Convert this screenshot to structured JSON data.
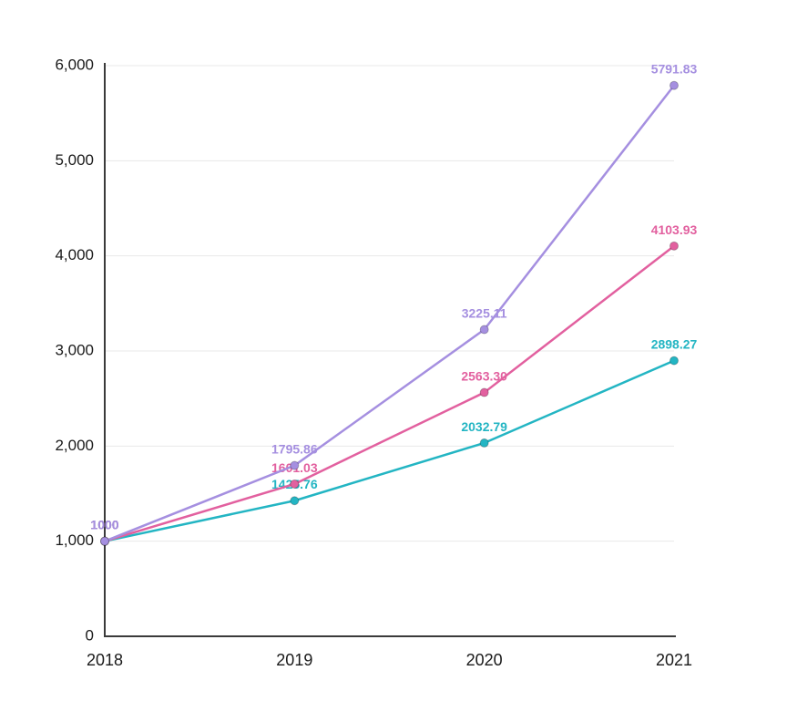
{
  "chart_data": {
    "type": "line",
    "title": "",
    "xlabel": "",
    "ylabel": "",
    "x": [
      "2018",
      "2019",
      "2020",
      "2021"
    ],
    "series": [
      {
        "name": "teal",
        "color": "#23b5c3",
        "values": [
          1000,
          1425.76,
          2032.79,
          2898.27
        ],
        "labels": [
          "1000",
          "1425.76",
          "2032.79",
          "2898.27"
        ]
      },
      {
        "name": "pink",
        "color": "#e2609f",
        "values": [
          1000,
          1601.03,
          2563.3,
          4103.93
        ],
        "labels": [
          "1000",
          "1601.03",
          "2563.30",
          "4103.93"
        ]
      },
      {
        "name": "purple",
        "color": "#a58fe0",
        "values": [
          1000,
          1795.86,
          3225.11,
          5791.83
        ],
        "labels": [
          "1000",
          "1795.86",
          "3225.11",
          "5791.83"
        ]
      }
    ],
    "ylim": [
      0,
      6000
    ],
    "yticks": [
      0,
      1000,
      2000,
      3000,
      4000,
      5000,
      6000
    ],
    "ytick_labels": [
      "0",
      "1,000",
      "2,000",
      "3,000",
      "4,000",
      "5,000",
      "6,000"
    ],
    "grid": true,
    "legend": false,
    "colors": {
      "grid": "#e8e8e8",
      "axis": "#3b3b3b",
      "axis_text": "#1a1a1a",
      "background": "#ffffff"
    }
  }
}
